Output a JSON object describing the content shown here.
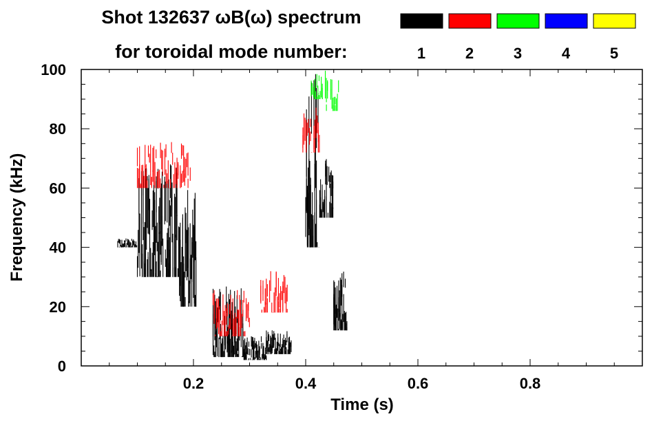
{
  "chart_data": {
    "type": "heatmap",
    "title_line1": "Shot 132637 ωB(ω) spectrum",
    "title_line2": "for toroidal mode number:",
    "xlabel": "Time (s)",
    "ylabel": "Frequency (kHz)",
    "xlim": [
      0.0,
      1.0
    ],
    "ylim": [
      0,
      100
    ],
    "x_ticks": [
      "0.2",
      "0.4",
      "0.6",
      "0.8"
    ],
    "y_ticks": [
      "0",
      "20",
      "40",
      "60",
      "80",
      "100"
    ],
    "legend": [
      {
        "label": "1",
        "color": "#000000"
      },
      {
        "label": "2",
        "color": "#ff0000"
      },
      {
        "label": "3",
        "color": "#00ff00"
      },
      {
        "label": "4",
        "color": "#0000ff"
      },
      {
        "label": "5",
        "color": "#ffff00"
      }
    ],
    "mode_regions": [
      {
        "mode": 1,
        "t": [
          0.065,
          0.1
        ],
        "f": [
          40,
          43
        ]
      },
      {
        "mode": 1,
        "t": [
          0.1,
          0.175
        ],
        "f": [
          30,
          68
        ]
      },
      {
        "mode": 1,
        "t": [
          0.175,
          0.205
        ],
        "f": [
          20,
          65
        ]
      },
      {
        "mode": 1,
        "t": [
          0.235,
          0.29
        ],
        "f": [
          3,
          27
        ]
      },
      {
        "mode": 1,
        "t": [
          0.29,
          0.33
        ],
        "f": [
          2,
          10
        ]
      },
      {
        "mode": 1,
        "t": [
          0.33,
          0.375
        ],
        "f": [
          4,
          12
        ]
      },
      {
        "mode": 1,
        "t": [
          0.4,
          0.425
        ],
        "f": [
          40,
          100
        ]
      },
      {
        "mode": 1,
        "t": [
          0.425,
          0.45
        ],
        "f": [
          50,
          70
        ]
      },
      {
        "mode": 1,
        "t": [
          0.45,
          0.475
        ],
        "f": [
          12,
          32
        ]
      },
      {
        "mode": 2,
        "t": [
          0.1,
          0.195
        ],
        "f": [
          60,
          76
        ]
      },
      {
        "mode": 2,
        "t": [
          0.395,
          0.425
        ],
        "f": [
          72,
          88
        ]
      },
      {
        "mode": 2,
        "t": [
          0.235,
          0.3
        ],
        "f": [
          10,
          26
        ]
      },
      {
        "mode": 2,
        "t": [
          0.32,
          0.37
        ],
        "f": [
          18,
          32
        ]
      },
      {
        "mode": 3,
        "t": [
          0.41,
          0.43
        ],
        "f": [
          90,
          100
        ]
      },
      {
        "mode": 3,
        "t": [
          0.435,
          0.46
        ],
        "f": [
          86,
          100
        ]
      }
    ]
  }
}
